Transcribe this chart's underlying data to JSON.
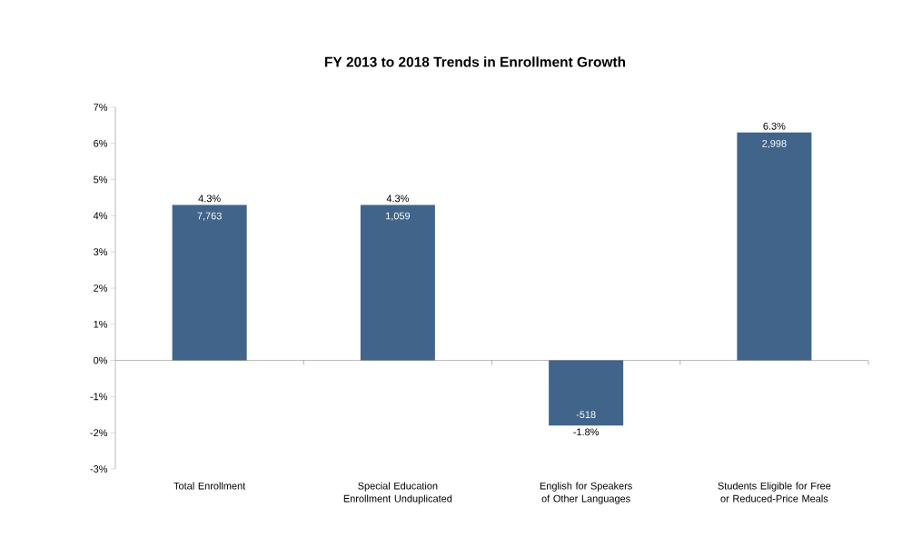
{
  "chart_data": {
    "type": "bar",
    "title": "FY 2013 to 2018 Trends in Enrollment Growth",
    "categories": [
      "Total Enrollment",
      "Special Education Enrollment Unduplicated",
      "English for Speakers of Other Languages",
      "Students Eligible for Free or Reduced-Price Meals"
    ],
    "values": [
      4.3,
      4.3,
      -1.8,
      6.3
    ],
    "value_labels": [
      "4.3%",
      "4.3%",
      "-1.8%",
      "6.3%"
    ],
    "color": "#41648a",
    "ylim": [
      -3,
      7
    ],
    "yticks": [
      {
        "value": -3,
        "label": "-3%"
      },
      {
        "value": -2,
        "label": "-2%"
      },
      {
        "value": -1,
        "label": "-1%"
      },
      {
        "value": 0,
        "label": "0%"
      },
      {
        "value": 1,
        "label": "1%"
      },
      {
        "value": 2,
        "label": "2%"
      },
      {
        "value": 3,
        "label": "3%"
      },
      {
        "value": 4,
        "label": "4%"
      },
      {
        "value": 5,
        "label": "5%"
      },
      {
        "value": 6,
        "label": "6%"
      },
      {
        "value": 7,
        "label": "7%"
      }
    ],
    "annotations": [
      {
        "text": "7,763",
        "x": "Total Enrollment",
        "y": 4.3
      },
      {
        "text": "1,059",
        "x": "Special Education Enrollment Unduplicated",
        "y": 4.3
      },
      {
        "text": "-518",
        "x": "English for Speakers of Other Languages",
        "y": -1.8
      },
      {
        "text": "2,998",
        "x": "Students Eligible for Free or Reduced-Price Meals",
        "y": 6.3
      }
    ]
  }
}
